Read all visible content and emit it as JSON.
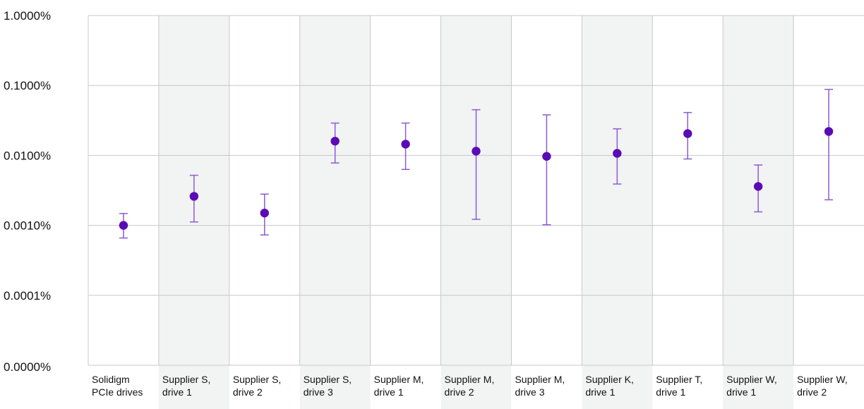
{
  "chart_data": {
    "type": "scatter",
    "title": "",
    "xlabel": "",
    "ylabel": "",
    "y_scale": "log",
    "y_range": [
      1e-06,
      0.01
    ],
    "y_ticks": [
      {
        "value": 0.01,
        "label": "1.0000%"
      },
      {
        "value": 0.001,
        "label": "0.1000%"
      },
      {
        "value": 0.0001,
        "label": "0.0100%"
      },
      {
        "value": 1e-05,
        "label": "0.0010%"
      },
      {
        "value": 1e-06,
        "label": "0.0001%"
      }
    ],
    "y_bottom_label": "0.0000%",
    "grid": true,
    "alternating_column_shading": true,
    "colors": {
      "marker": "#5B0BB5",
      "error_bar": "#8A5CD6",
      "shade": "#F2F3F3",
      "grid": "#C8C8C8"
    },
    "categories": [
      [
        "Solidigm",
        "PCIe drives"
      ],
      [
        "Supplier S,",
        "drive 1"
      ],
      [
        "Supplier S,",
        "drive 2"
      ],
      [
        "Supplier S,",
        "drive 3"
      ],
      [
        "Supplier M,",
        "drive 1"
      ],
      [
        "Supplier M,",
        "drive 2"
      ],
      [
        "Supplier M,",
        "drive 3"
      ],
      [
        "Supplier K,",
        "drive 1"
      ],
      [
        "Supplier T,",
        "drive 1"
      ],
      [
        "Supplier W,",
        "drive 1"
      ],
      [
        "Supplier W,",
        "drive 2"
      ]
    ],
    "values": [
      1e-05,
      2.6e-05,
      1.5e-05,
      0.00016,
      0.000145,
      0.000115,
      9.7e-05,
      0.000107,
      0.000205,
      3.6e-05,
      0.00022
    ],
    "error_low": [
      6.6e-06,
      1.12e-05,
      7.3e-06,
      7.8e-05,
      6.3e-05,
      1.22e-05,
      1.02e-05,
      3.9e-05,
      8.9e-05,
      1.56e-05,
      2.32e-05
    ],
    "error_high": [
      1.48e-05,
      5.2e-05,
      2.8e-05,
      0.00029,
      0.00029,
      0.00045,
      0.00038,
      0.00024,
      0.00041,
      7.3e-05,
      0.00088
    ]
  }
}
